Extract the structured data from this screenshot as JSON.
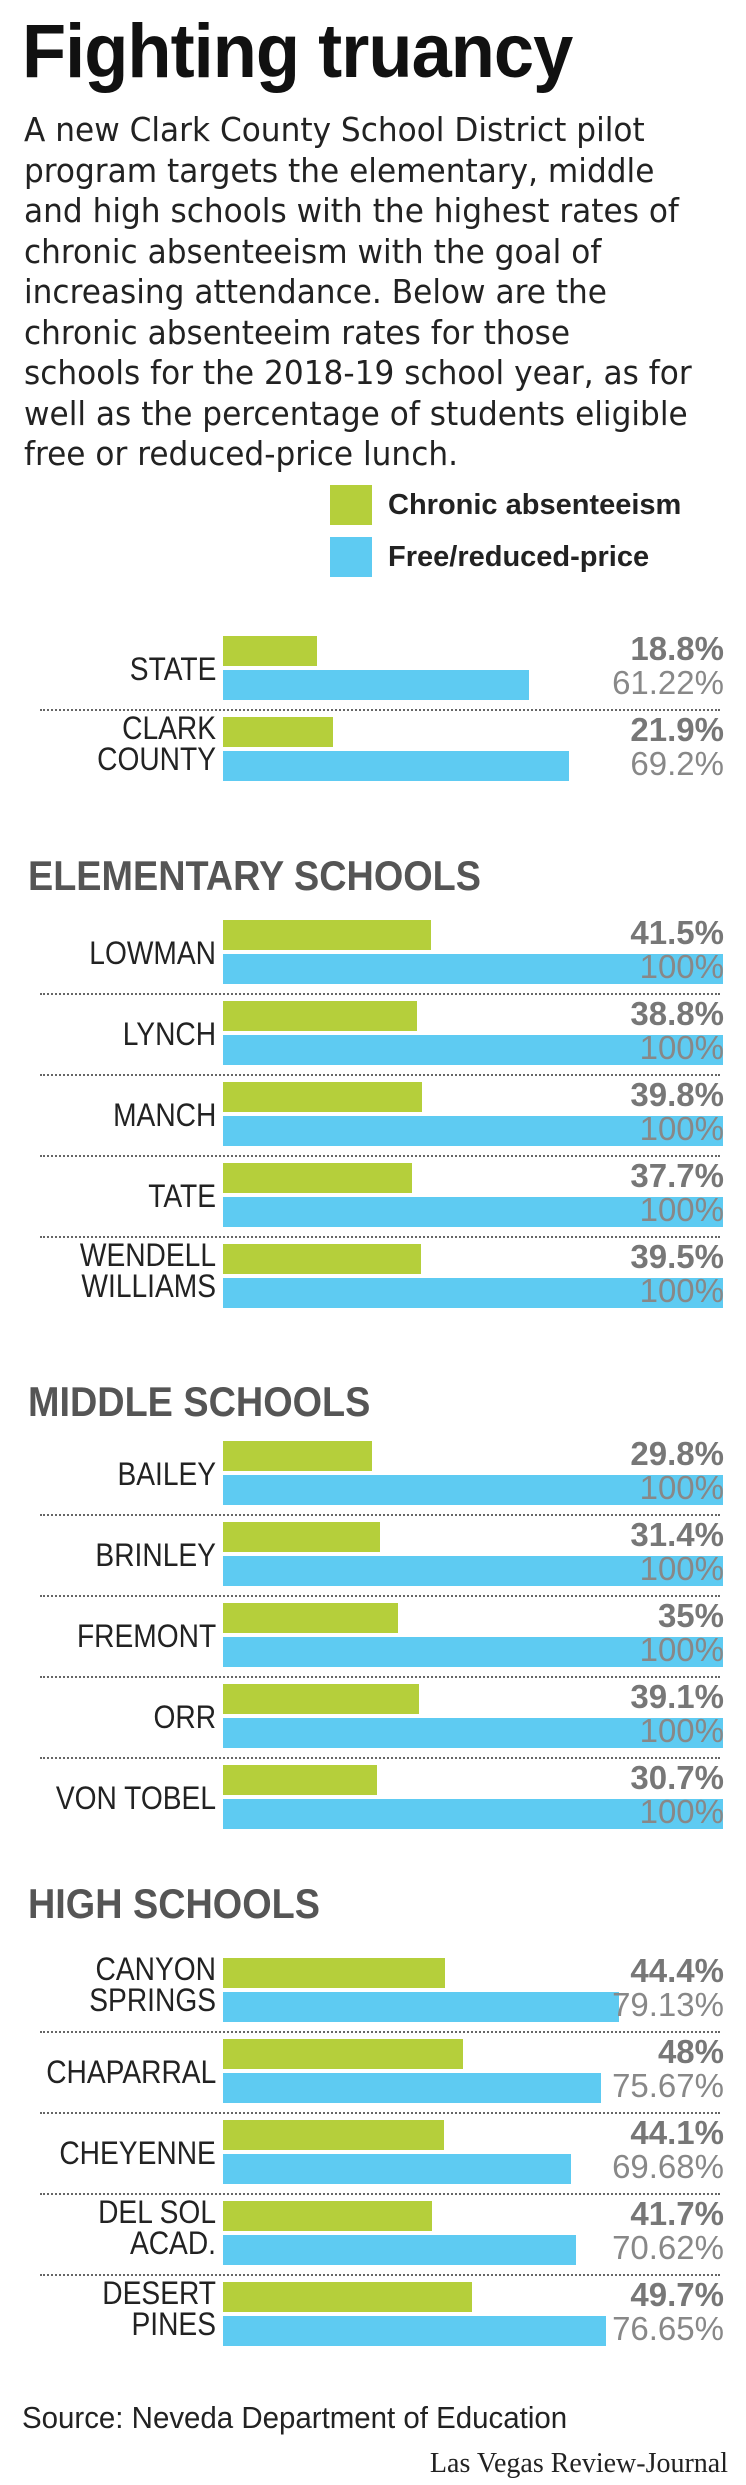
{
  "title": "Fighting truancy",
  "intro": "A new Clark County School District pilot program targets the elementary, middle and high schools with the highest rates of chronic absenteeism with the goal of increasing attendance. Below are the chronic absenteeim rates for those schools for the 2018-19 school year, as for well as the percentage of students eligible free or reduced-price lunch.",
  "legend": {
    "chronic": "Chronic absenteeism",
    "free": "Free/reduced-price"
  },
  "colors": {
    "chronic": "#b5cf3b",
    "free": "#5ecbf2"
  },
  "source": "Source: Neveda Department of Education",
  "credit": "Las Vegas Review-Journal",
  "chart_data": {
    "type": "bar",
    "title": "Fighting truancy",
    "xlim": [
      0,
      100
    ],
    "series_names": [
      "Chronic absenteeism",
      "Free/reduced-price"
    ],
    "groups": [
      {
        "title": "",
        "rows": [
          {
            "label": "STATE",
            "chronic": 18.8,
            "chronic_label": "18.8%",
            "free": 61.22,
            "free_label": "61.22%"
          },
          {
            "label": "CLARK COUNTY",
            "chronic": 21.9,
            "chronic_label": "21.9%",
            "free": 69.2,
            "free_label": "69.2%"
          }
        ]
      },
      {
        "title": "ELEMENTARY SCHOOLS",
        "rows": [
          {
            "label": "LOWMAN",
            "chronic": 41.5,
            "chronic_label": "41.5%",
            "free": 100,
            "free_label": "100%"
          },
          {
            "label": "LYNCH",
            "chronic": 38.8,
            "chronic_label": "38.8%",
            "free": 100,
            "free_label": "100%"
          },
          {
            "label": "MANCH",
            "chronic": 39.8,
            "chronic_label": "39.8%",
            "free": 100,
            "free_label": "100%"
          },
          {
            "label": "TATE",
            "chronic": 37.7,
            "chronic_label": "37.7%",
            "free": 100,
            "free_label": "100%"
          },
          {
            "label": "WENDELL WILLIAMS",
            "chronic": 39.5,
            "chronic_label": "39.5%",
            "free": 100,
            "free_label": "100%"
          }
        ]
      },
      {
        "title": "MIDDLE SCHOOLS",
        "rows": [
          {
            "label": "BAILEY",
            "chronic": 29.8,
            "chronic_label": "29.8%",
            "free": 100,
            "free_label": "100%"
          },
          {
            "label": "BRINLEY",
            "chronic": 31.4,
            "chronic_label": "31.4%",
            "free": 100,
            "free_label": "100%"
          },
          {
            "label": "FREMONT",
            "chronic": 35,
            "chronic_label": "35%",
            "free": 100,
            "free_label": "100%"
          },
          {
            "label": "ORR",
            "chronic": 39.1,
            "chronic_label": "39.1%",
            "free": 100,
            "free_label": "100%"
          },
          {
            "label": "VON TOBEL",
            "chronic": 30.7,
            "chronic_label": "30.7%",
            "free": 100,
            "free_label": "100%"
          }
        ]
      },
      {
        "title": "HIGH SCHOOLS",
        "rows": [
          {
            "label": "CANYON SPRINGS",
            "chronic": 44.4,
            "chronic_label": "44.4%",
            "free": 79.13,
            "free_label": "79.13%"
          },
          {
            "label": "CHAPARRAL",
            "chronic": 48,
            "chronic_label": "48%",
            "free": 75.67,
            "free_label": "75.67%"
          },
          {
            "label": "CHEYENNE",
            "chronic": 44.1,
            "chronic_label": "44.1%",
            "free": 69.68,
            "free_label": "69.68%"
          },
          {
            "label": "DEL SOL ACAD.",
            "chronic": 41.7,
            "chronic_label": "41.7%",
            "free": 70.62,
            "free_label": "70.62%"
          },
          {
            "label": "DESERT PINES",
            "chronic": 49.7,
            "chronic_label": "49.7%",
            "free": 76.65,
            "free_label": "76.65%"
          }
        ]
      }
    ]
  }
}
